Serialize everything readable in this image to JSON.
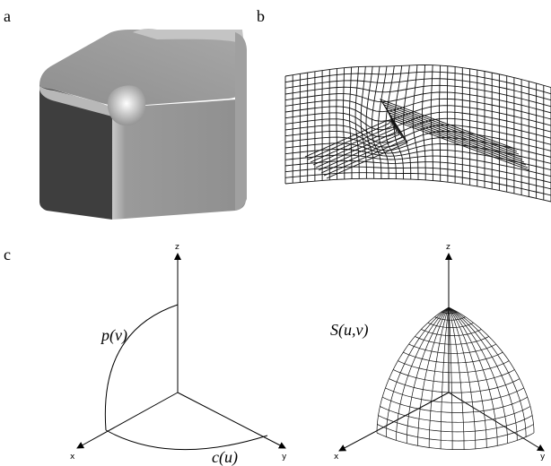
{
  "panels": {
    "a": {
      "label": "a"
    },
    "b": {
      "label": "b"
    },
    "c": {
      "label": "c",
      "left": {
        "axes": {
          "z": "z",
          "x": "x",
          "y": "y"
        },
        "curves": {
          "p": "p(v)",
          "c": "c(u)"
        }
      },
      "right": {
        "axes": {
          "z": "z",
          "x": "x",
          "y": "y"
        },
        "surface": "S(u,v)"
      }
    }
  }
}
